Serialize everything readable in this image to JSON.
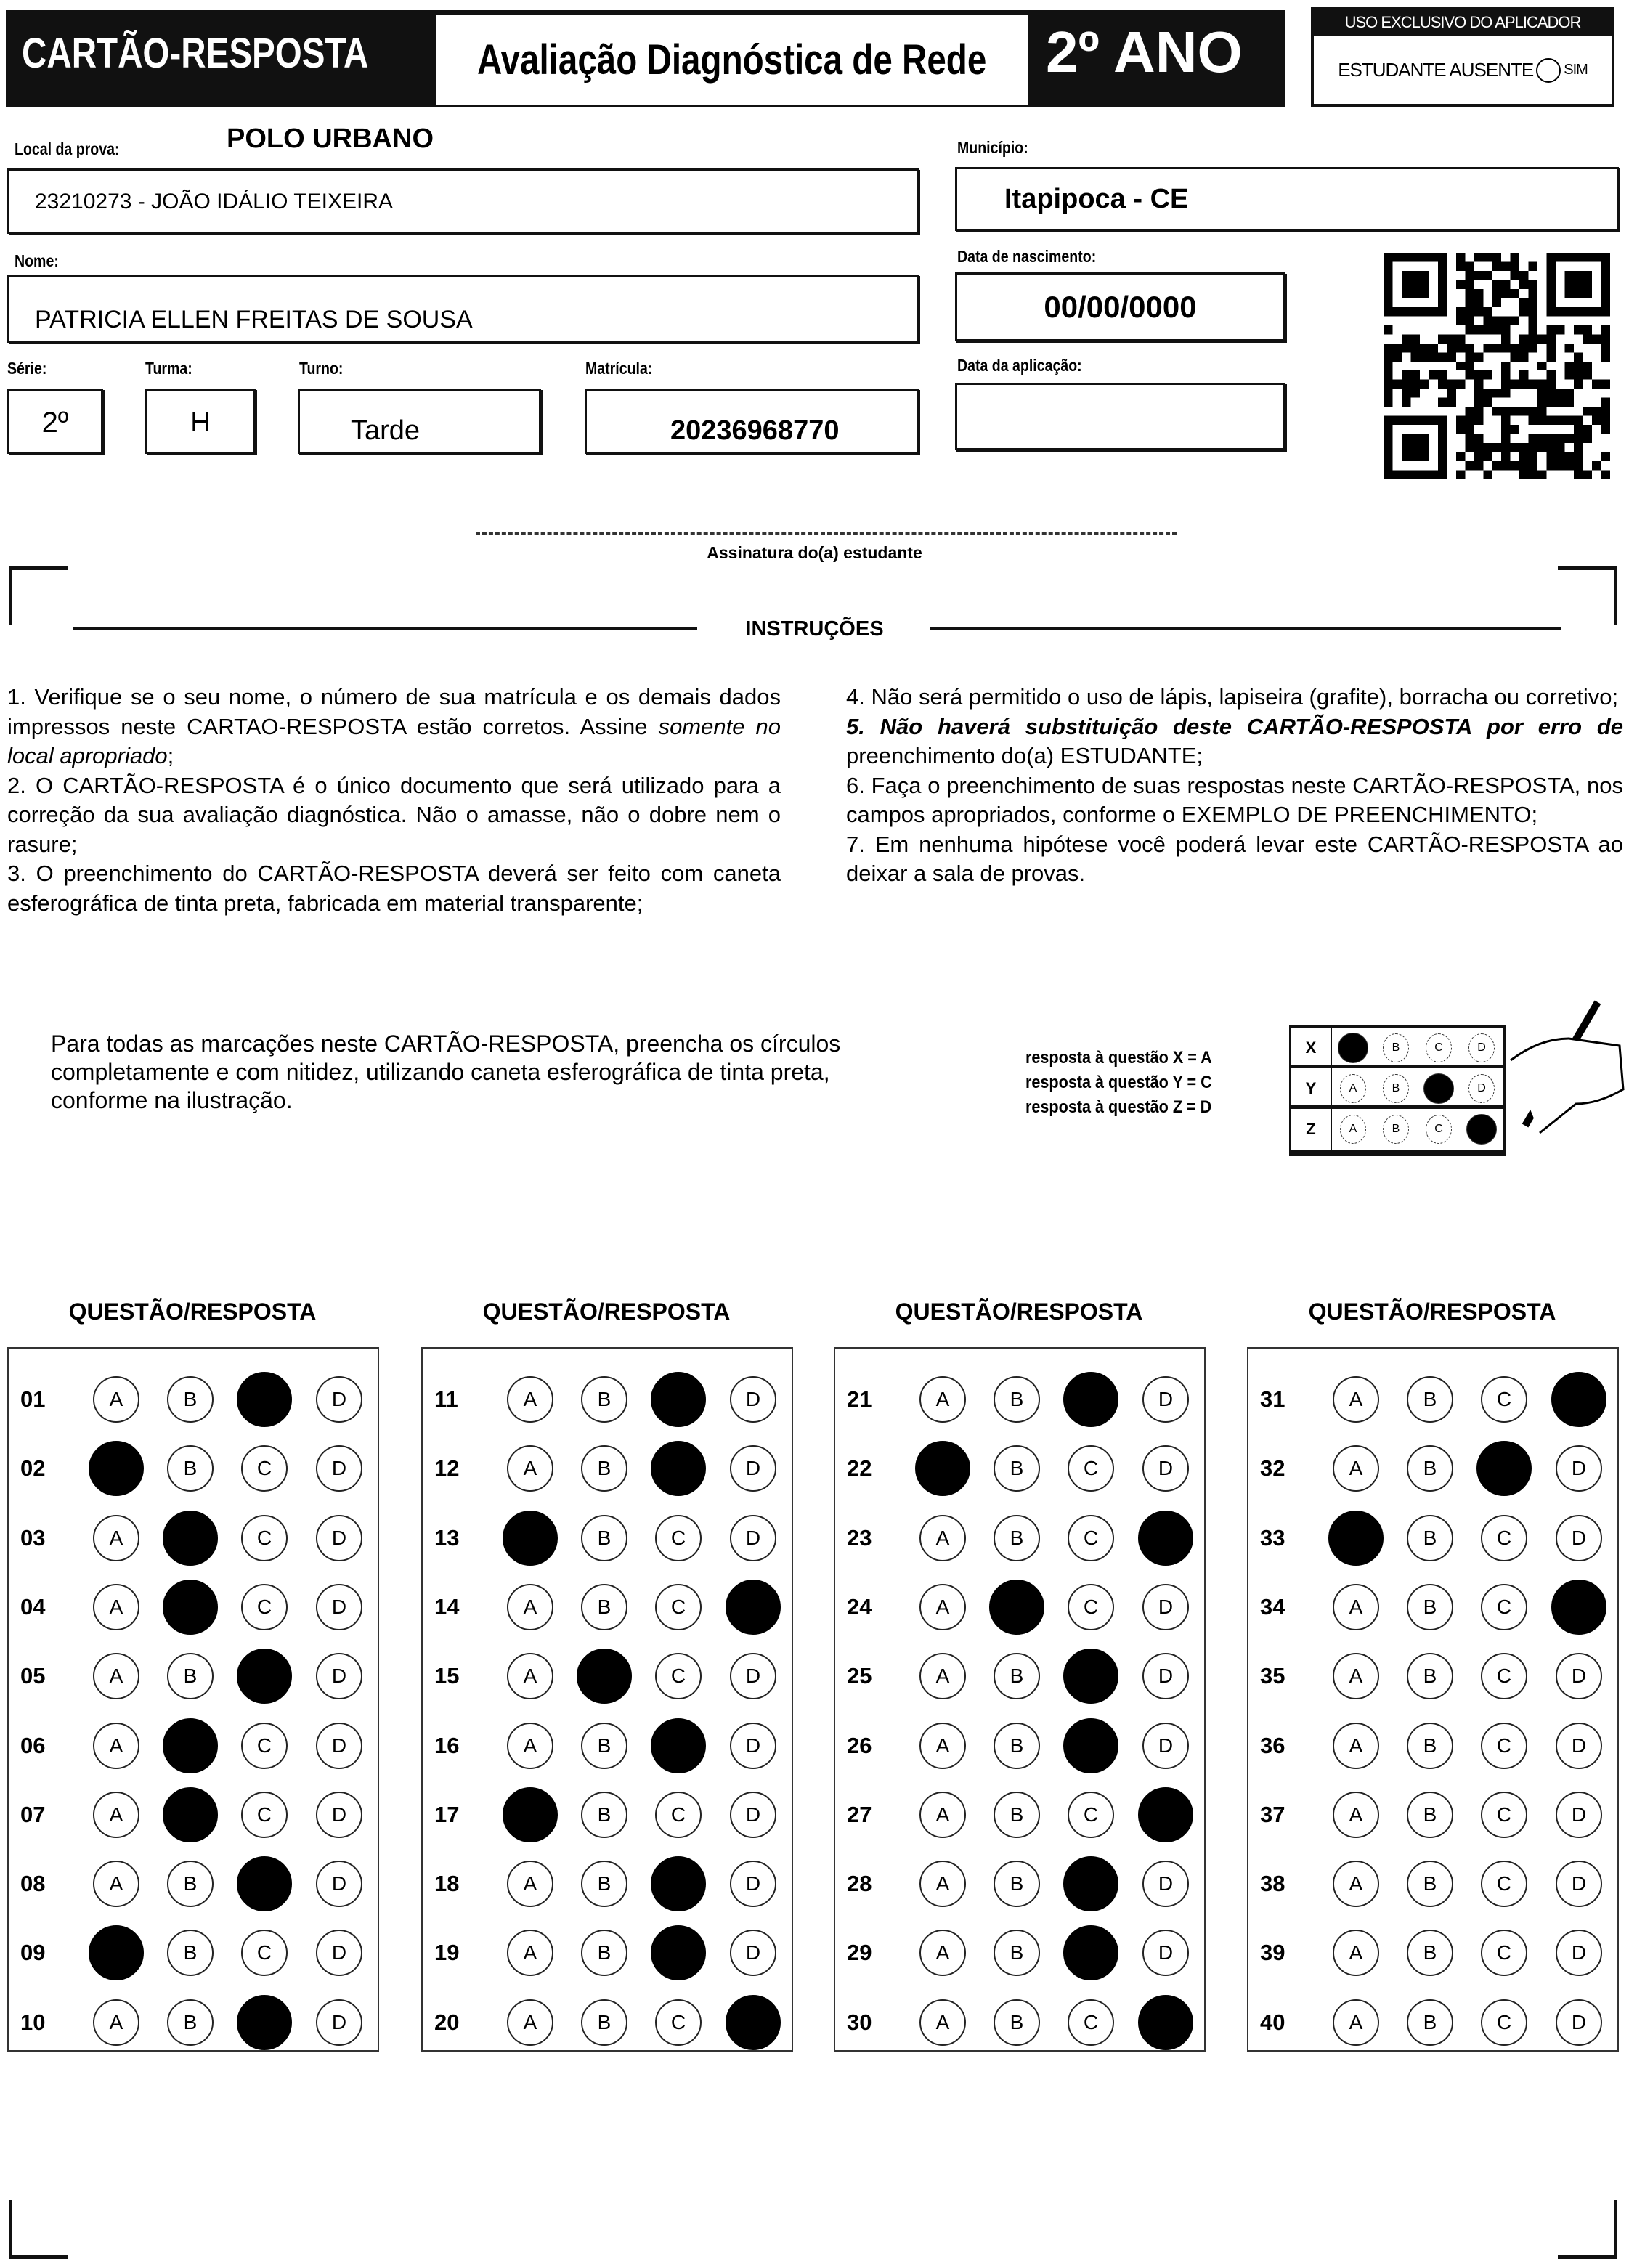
{
  "header": {
    "card_label": "CARTÃO-RESPOSTA",
    "exam_title": "Avaliação Diagnóstica de Rede",
    "grade": "2º ANO",
    "applicator": {
      "title": "USO EXCLUSIVO DO APLICADOR",
      "absent_label": "ESTUDANTE AUSENTE",
      "absent_option": "SIM"
    }
  },
  "fields": {
    "local_label": "Local da prova:",
    "local_polo": "POLO URBANO",
    "local_value": "23210273 - JOÃO IDÁLIO TEIXEIRA",
    "municipio_label": "Município:",
    "municipio_value": "Itapipoca - CE",
    "nome_label": "Nome:",
    "nome_value": "PATRICIA ELLEN FREITAS DE SOUSA",
    "nascimento_label": "Data de nascimento:",
    "nascimento_value": "00/00/0000",
    "serie_label": "Série:",
    "serie_value": "2º",
    "turma_label": "Turma:",
    "turma_value": "H",
    "turno_label": "Turno:",
    "turno_value": "Tarde",
    "matricula_label": "Matrícula:",
    "matricula_value": "20236968770",
    "aplicacao_label": "Data da aplicação:",
    "aplicacao_value": ""
  },
  "signature_label": "Assinatura do(a) estudante",
  "instructions": {
    "title": "INSTRUÇÕES",
    "left": [
      "1. Verifique se o seu nome, o número de sua matrícula e os demais dados impressos neste CARTAO-RESPOSTA estão corretos. Assine",
      "somente no local apropriado",
      ";",
      "2. O CARTÃO-RESPOSTA é o único documento que será utilizado para a correção da sua avaliação diagnóstica. Não o amasse, não o dobre nem o rasure;",
      "3. O preenchimento do CARTÃO-RESPOSTA deverá ser feito com caneta esferográfica de tinta preta, fabricada em material transparente;"
    ],
    "right": [
      "4. Não será permitido o uso de lápis, lapiseira (grafite), borracha ou corretivo;",
      "5. Não haverá substituição deste CARTÃO-RESPOSTA por erro de",
      "preenchimento do(a) ESTUDANTE;",
      "6. Faça o preenchimento de suas respostas neste CARTÃO-RESPOSTA, nos campos apropriados, conforme o EXEMPLO DE PREENCHIMENTO;",
      "7. Em nenhuma hipótese você poderá levar este CARTÃO-RESPOSTA ao deixar a sala de provas."
    ]
  },
  "fill_note": "Para todas as marcações neste CARTÃO-RESPOSTA, preencha os círculos completamente e com nitidez, utilizando caneta esferográfica de tinta preta, conforme na ilustração.",
  "example": {
    "lines": [
      "resposta à questão X = A",
      "resposta à questão Y = C",
      "resposta à questão Z = D"
    ],
    "rows": [
      {
        "q": "X",
        "answer": "A"
      },
      {
        "q": "Y",
        "answer": "C"
      },
      {
        "q": "Z",
        "answer": "D"
      }
    ]
  },
  "options": [
    "A",
    "B",
    "C",
    "D"
  ],
  "answer_header": "QUESTÃO/RESPOSTA",
  "answers": [
    {
      "q": "01",
      "mark": "C"
    },
    {
      "q": "02",
      "mark": "A"
    },
    {
      "q": "03",
      "mark": "B"
    },
    {
      "q": "04",
      "mark": "B"
    },
    {
      "q": "05",
      "mark": "C"
    },
    {
      "q": "06",
      "mark": "B"
    },
    {
      "q": "07",
      "mark": "B"
    },
    {
      "q": "08",
      "mark": "C"
    },
    {
      "q": "09",
      "mark": "A"
    },
    {
      "q": "10",
      "mark": "C"
    },
    {
      "q": "11",
      "mark": "C"
    },
    {
      "q": "12",
      "mark": "C"
    },
    {
      "q": "13",
      "mark": "A"
    },
    {
      "q": "14",
      "mark": "D"
    },
    {
      "q": "15",
      "mark": "B"
    },
    {
      "q": "16",
      "mark": "C"
    },
    {
      "q": "17",
      "mark": "A"
    },
    {
      "q": "18",
      "mark": "C"
    },
    {
      "q": "19",
      "mark": "C"
    },
    {
      "q": "20",
      "mark": "D"
    },
    {
      "q": "21",
      "mark": "C"
    },
    {
      "q": "22",
      "mark": "A"
    },
    {
      "q": "23",
      "mark": "D"
    },
    {
      "q": "24",
      "mark": "B"
    },
    {
      "q": "25",
      "mark": "C"
    },
    {
      "q": "26",
      "mark": "C"
    },
    {
      "q": "27",
      "mark": "D"
    },
    {
      "q": "28",
      "mark": "C"
    },
    {
      "q": "29",
      "mark": "C"
    },
    {
      "q": "30",
      "mark": "D"
    },
    {
      "q": "31",
      "mark": "D"
    },
    {
      "q": "32",
      "mark": "C"
    },
    {
      "q": "33",
      "mark": "A"
    },
    {
      "q": "34",
      "mark": "D"
    },
    {
      "q": "35",
      "mark": ""
    },
    {
      "q": "36",
      "mark": ""
    },
    {
      "q": "37",
      "mark": ""
    },
    {
      "q": "38",
      "mark": ""
    },
    {
      "q": "39",
      "mark": ""
    },
    {
      "q": "40",
      "mark": ""
    }
  ]
}
